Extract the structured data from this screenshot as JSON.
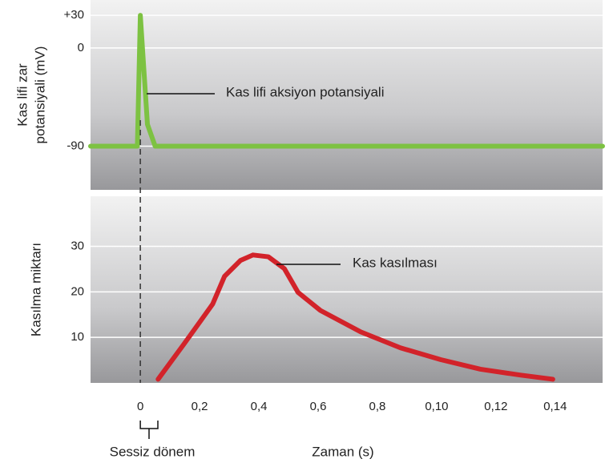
{
  "chart_data": [
    {
      "type": "line",
      "y_label": [
        "Kas lifi zar",
        "potansiyali (mV)"
      ],
      "annotation": "Kas lifi aksiyon potansiyali",
      "xlim": [
        -0.84,
        7.8
      ],
      "ylim": [
        -130,
        44
      ],
      "yticks": [
        {
          "value": 30,
          "label": "+30"
        },
        0,
        -90
      ],
      "grid": true,
      "series": [
        {
          "color": "#7dc242",
          "x": [
            -0.84,
            -0.05,
            0,
            0.12,
            0.25,
            7.8
          ],
          "values": [
            -90,
            -90,
            30,
            -70,
            -90,
            -90
          ]
        }
      ]
    },
    {
      "type": "line",
      "y_label": [
        "Kasılma miktarı"
      ],
      "annotation": "Kas kasılması",
      "x_label": "Zaman (s)",
      "latent_label": "Sessiz dönem",
      "xlim": [
        -0.84,
        7.8
      ],
      "ylim": [
        0,
        41
      ],
      "yticks": [
        30,
        20,
        10
      ],
      "xticks": [
        0,
        {
          "value": 1,
          "label": "0,2"
        },
        {
          "value": 2,
          "label": "0,4"
        },
        {
          "value": 3,
          "label": "0,6"
        },
        {
          "value": 4,
          "label": "0,8"
        },
        {
          "value": 5,
          "label": "0,10"
        },
        {
          "value": 6,
          "label": "0,12"
        },
        {
          "value": 7,
          "label": "0,14"
        }
      ],
      "grid": true,
      "series": [
        {
          "color": "#d2232a",
          "x": [
            0.3,
            0.74,
            1.22,
            1.42,
            1.69,
            1.9,
            2.16,
            2.43,
            2.66,
            3.04,
            3.72,
            4.39,
            5.07,
            5.74,
            6.42,
            6.96
          ],
          "values": [
            0.8,
            8.6,
            17.3,
            23.4,
            26.9,
            28.1,
            27.7,
            25.1,
            19.9,
            15.9,
            11.2,
            7.7,
            5.1,
            3.0,
            1.7,
            0.8
          ]
        }
      ]
    }
  ]
}
